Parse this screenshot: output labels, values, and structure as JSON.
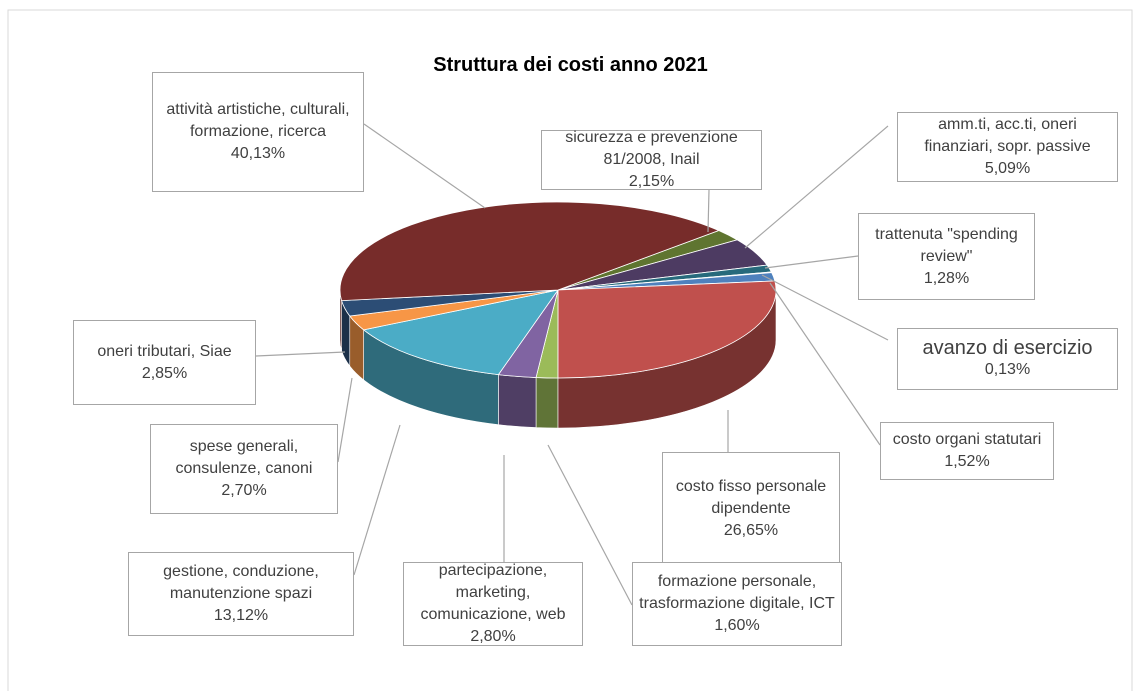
{
  "chart_data": {
    "type": "pie",
    "title": "Struttura dei costi anno 2021",
    "categories": [
      "sicurezza e prevenzione 81/2008, Inail",
      "amm.ti, acc.ti, oneri finanziari, sopr. passive",
      "trattenuta \"spending review\"",
      "avanzo di esercizio",
      "costo organi statutari",
      "costo fisso personale dipendente",
      "formazione personale, trasformazione digitale, ICT",
      "partecipazione, marketing, comunicazione, web",
      "gestione, conduzione, manutenzione spazi",
      "spese generali, consulenze, canoni",
      "oneri tributari, Siae",
      "attività artistiche, culturali, formazione, ricerca"
    ],
    "values": [
      2.15,
      5.09,
      1.28,
      0.13,
      1.52,
      26.65,
      1.6,
      2.8,
      13.12,
      2.7,
      2.85,
      40.13
    ],
    "value_labels": [
      "2,15%",
      "5,09%",
      "1,28%",
      "0,13%",
      "1,52%",
      "26,65%",
      "1,60%",
      "2,80%",
      "13,12%",
      "2,70%",
      "2,85%",
      "40,13%"
    ],
    "colors": [
      "#5f7530",
      "#4d3b62",
      "#276a7c",
      "#3f6fa8",
      "#4f81bd",
      "#c0504d",
      "#9bbb59",
      "#8064a2",
      "#4bacc6",
      "#f79646",
      "#2c4d75",
      "#772c2a"
    ]
  }
}
